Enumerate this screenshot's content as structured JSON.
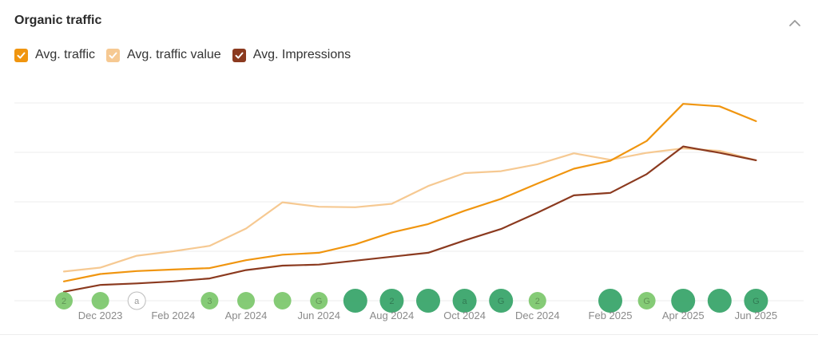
{
  "header": {
    "title": "Organic traffic"
  },
  "legend": [
    {
      "label": "Avg. traffic",
      "color": "#f0950f"
    },
    {
      "label": "Avg. traffic value",
      "color": "#f6c992"
    },
    {
      "label": "Avg. Impressions",
      "color": "#8b3a1f"
    }
  ],
  "chart_data": {
    "type": "line",
    "x": [
      "Nov 2023",
      "Dec 2023",
      "Jan 2024",
      "Feb 2024",
      "Mar 2024",
      "Apr 2024",
      "May 2024",
      "Jun 2024",
      "Jul 2024",
      "Aug 2024",
      "Sep 2024",
      "Oct 2024",
      "Nov 2024",
      "Dec 2024",
      "Jan 2025",
      "Feb 2025",
      "Mar 2025",
      "Apr 2025",
      "May 2025",
      "Jun 2025"
    ],
    "x_tick_labels": [
      "Dec 2023",
      "Feb 2024",
      "Apr 2024",
      "Jun 2024",
      "Aug 2024",
      "Oct 2024",
      "Dec 2024",
      "Feb 2025",
      "Apr 2025",
      "Jun 2025"
    ],
    "y_gridlines": [
      0,
      1,
      2,
      3,
      4
    ],
    "ylim": [
      0,
      4
    ],
    "grid": true,
    "series": [
      {
        "name": "Avg. traffic",
        "color": "#f0950f",
        "values": [
          0.39,
          0.54,
          0.6,
          0.63,
          0.66,
          0.82,
          0.93,
          0.97,
          1.14,
          1.38,
          1.55,
          1.82,
          2.06,
          2.37,
          2.67,
          2.83,
          3.23,
          3.98,
          3.93,
          3.63
        ]
      },
      {
        "name": "Avg. traffic value",
        "color": "#f6c992",
        "values": [
          0.59,
          0.67,
          0.91,
          1.0,
          1.11,
          1.46,
          1.99,
          1.9,
          1.89,
          1.96,
          2.32,
          2.58,
          2.62,
          2.76,
          2.98,
          2.85,
          2.99,
          3.08,
          3.03,
          2.84
        ]
      },
      {
        "name": "Avg. Impressions",
        "color": "#8b3a1f",
        "values": [
          0.18,
          0.32,
          0.35,
          0.39,
          0.45,
          0.62,
          0.71,
          0.73,
          0.81,
          0.89,
          0.97,
          1.22,
          1.45,
          1.78,
          2.13,
          2.18,
          2.56,
          3.12,
          2.99,
          2.84
        ]
      }
    ],
    "annotations": [
      {
        "month": "Nov 2023",
        "label": "2",
        "size": "small",
        "color": "#7ec86f"
      },
      {
        "month": "Dec 2023",
        "label": "",
        "size": "small",
        "color": "#7ec86f"
      },
      {
        "month": "Jan 2024",
        "label": "a",
        "size": "small",
        "color": "#ffffff"
      },
      {
        "month": "Mar 2024",
        "label": "3",
        "size": "small",
        "color": "#7ec86f"
      },
      {
        "month": "Apr 2024",
        "label": "",
        "size": "small",
        "color": "#7ec86f"
      },
      {
        "month": "May 2024",
        "label": "",
        "size": "small",
        "color": "#7ec86f"
      },
      {
        "month": "Jun 2024",
        "label": "G",
        "size": "small",
        "color": "#7ec86f"
      },
      {
        "month": "Jul 2024",
        "label": "",
        "size": "large",
        "color": "#3aa56b"
      },
      {
        "month": "Aug 2024",
        "label": "2",
        "size": "large",
        "color": "#3aa56b"
      },
      {
        "month": "Sep 2024",
        "label": "",
        "size": "large",
        "color": "#3aa56b"
      },
      {
        "month": "Oct 2024",
        "label": "a",
        "size": "large",
        "color": "#3aa56b"
      },
      {
        "month": "Nov 2024",
        "label": "G",
        "size": "large",
        "color": "#3aa56b"
      },
      {
        "month": "Dec 2024",
        "label": "2",
        "size": "small",
        "color": "#7ec86f"
      },
      {
        "month": "Feb 2025",
        "label": "",
        "size": "large",
        "color": "#3aa56b"
      },
      {
        "month": "Mar 2025",
        "label": "G",
        "size": "small",
        "color": "#7ec86f"
      },
      {
        "month": "Apr 2025",
        "label": "",
        "size": "large",
        "color": "#3aa56b"
      },
      {
        "month": "May 2025",
        "label": "",
        "size": "large",
        "color": "#3aa56b"
      },
      {
        "month": "Jun 2025",
        "label": "G",
        "size": "large",
        "color": "#3aa56b"
      }
    ]
  }
}
